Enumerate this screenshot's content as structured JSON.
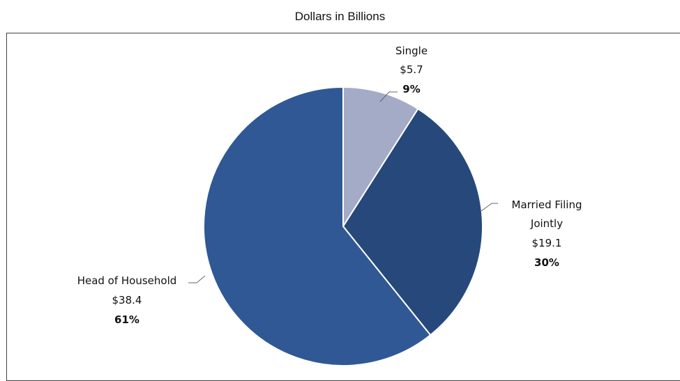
{
  "chart_data": {
    "type": "pie",
    "title": "Dollars in Billions",
    "slices": [
      {
        "label": "Single",
        "value": 5.7,
        "value_text": "$5.7",
        "percent_text": "9%",
        "color": "#a3abc7"
      },
      {
        "label": "Married Filing Jointly",
        "label_lines": [
          "Married Filing",
          "Jointly"
        ],
        "value": 19.1,
        "value_text": "$19.1",
        "percent_text": "30%",
        "color": "#27487b"
      },
      {
        "label": "Head of Household",
        "value": 38.4,
        "value_text": "$38.4",
        "percent_text": "61%",
        "color": "#2f5895"
      }
    ],
    "start_angle_deg": 0,
    "direction": "clockwise"
  }
}
